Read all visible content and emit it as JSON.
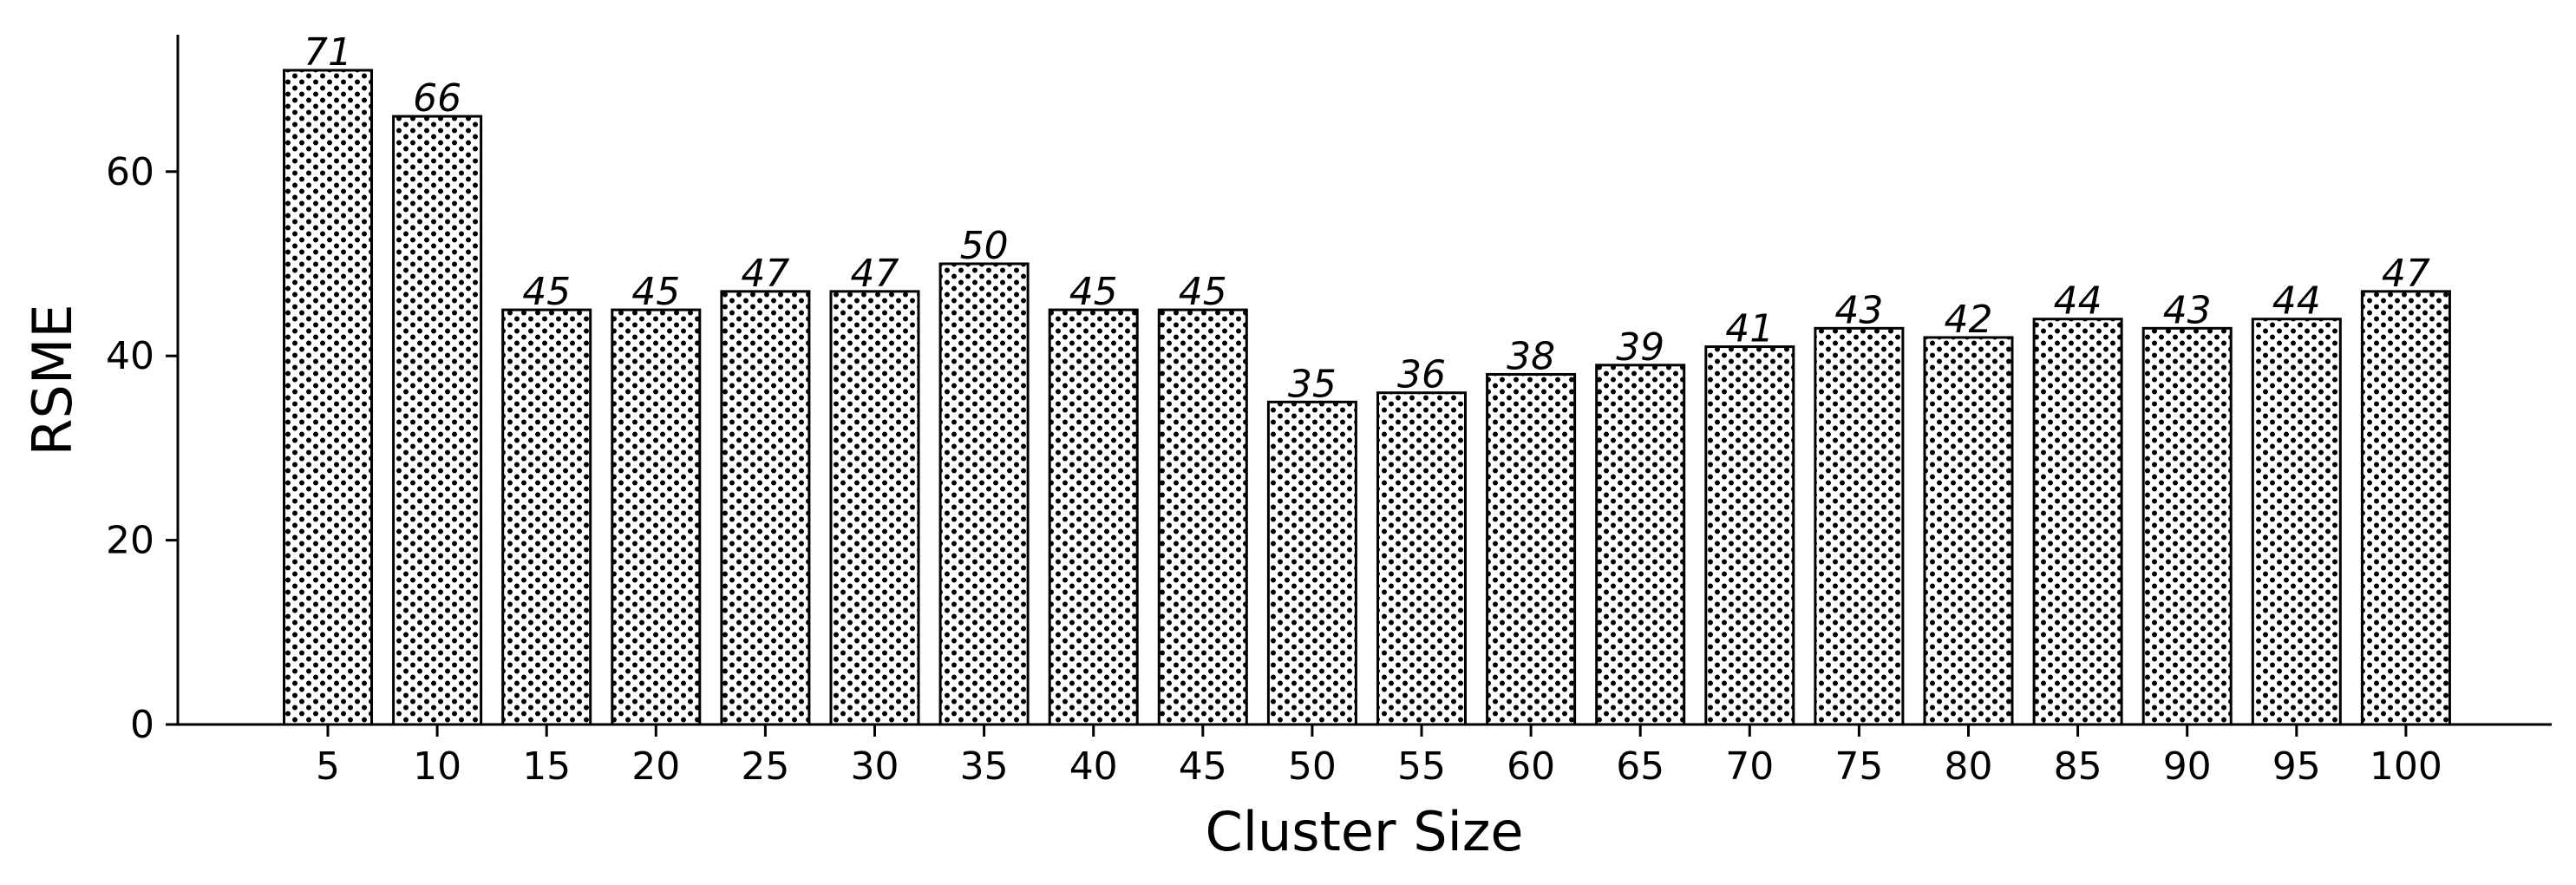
{
  "chart_data": {
    "type": "bar",
    "categories": [
      "5",
      "10",
      "15",
      "20",
      "25",
      "30",
      "35",
      "40",
      "45",
      "50",
      "55",
      "60",
      "65",
      "70",
      "75",
      "80",
      "85",
      "90",
      "95",
      "100"
    ],
    "values": [
      71,
      66,
      45,
      45,
      47,
      47,
      50,
      45,
      45,
      35,
      36,
      38,
      39,
      41,
      43,
      42,
      44,
      43,
      44,
      47
    ],
    "data_labels": [
      "71",
      "66",
      "45",
      "45",
      "47",
      "47",
      "50",
      "45",
      "45",
      "35",
      "36",
      "38",
      "39",
      "41",
      "43",
      "42",
      "44",
      "43",
      "44",
      "47"
    ],
    "xlabel": "Cluster Size",
    "ylabel": "RSME",
    "ylim": [
      0,
      74.5
    ],
    "yticks": [
      0,
      20,
      40,
      60
    ],
    "ytick_labels": [
      "0",
      "20",
      "40",
      "60"
    ],
    "grid": false,
    "bar_fill": "dotted hatch",
    "bar_color": "#ffffff",
    "edge_color": "#000000"
  }
}
